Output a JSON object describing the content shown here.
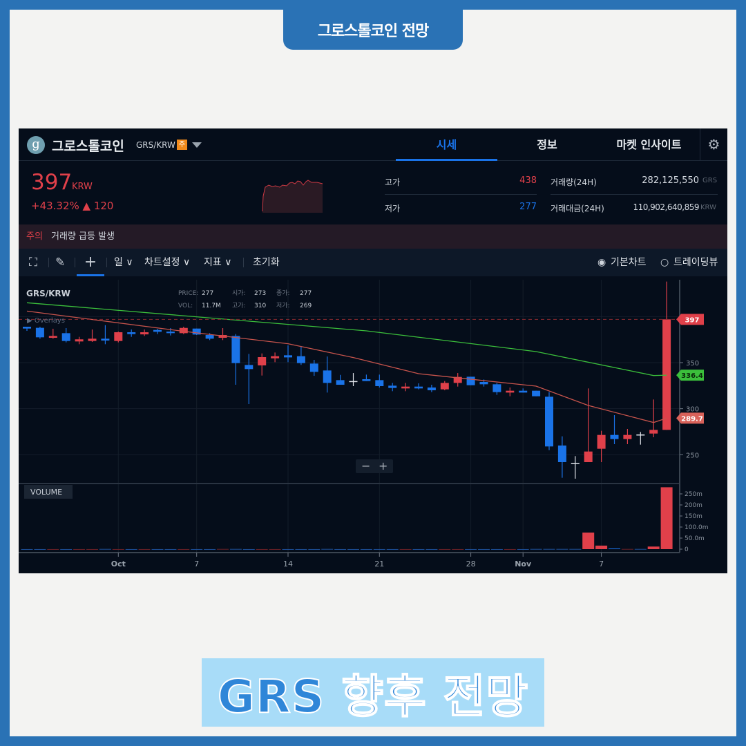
{
  "header_tab": "그로스톨코인 전망",
  "banner": "GRS 향후 전망",
  "app": {
    "logo_letter": "g",
    "coin_name": "그로스톨코인",
    "pair": "GRS/KRW",
    "badge": "주",
    "tabs": [
      {
        "label": "시세",
        "active": true
      },
      {
        "label": "정보"
      },
      {
        "label": "마켓 인사이트"
      }
    ],
    "settings_icon": "gear-icon",
    "price": "397",
    "price_unit": "KRW",
    "change": "+43.32% ▲ 120",
    "stats": {
      "high_label": "고가",
      "high": "438",
      "low_label": "저가",
      "low": "277",
      "volume_label": "거래량(24H)",
      "volume": "282,125,550",
      "volume_unit": "GRS",
      "amount_label": "거래대금(24H)",
      "amount": "110,902,640,859",
      "amount_unit": "KRW"
    },
    "warning": {
      "tag": "주의",
      "message": "거래량 급등 발생"
    },
    "toolbar": {
      "interval": "일 ∨",
      "chart_settings": "차트설정 ∨",
      "indicators": "지표 ∨",
      "reset": "초기화",
      "view_basic": "기본차트",
      "view_tradingview": "트레이딩뷰"
    },
    "colors": {
      "up": "#e0404a",
      "down": "#1a73e8",
      "accent": "#1a73e8",
      "ma_short": "#c8544c",
      "ma_long": "#3bbf3b",
      "background": "#050d1a"
    }
  },
  "chart_data": {
    "type": "candlestick",
    "title": "GRS/KRW",
    "overlays_label": "▶ Overlays",
    "volume_label": "VOLUME",
    "tooltip": {
      "price_label": "PRICE:",
      "price": "277",
      "open_label": "시가:",
      "open": "273",
      "close_label": "종가:",
      "close": "277",
      "vol_label": "VOL:",
      "vol": "11.7M",
      "high_label": "고가:",
      "high": "310",
      "low_label": "저가:",
      "low": "269"
    },
    "x": [
      "Sep 24",
      "Sep 25",
      "Sep 26",
      "Sep 27",
      "Sep 28",
      "Sep 29",
      "Sep 30",
      "Oct 1",
      "Oct 2",
      "Oct 3",
      "Oct 4",
      "Oct 5",
      "Oct 6",
      "Oct 7",
      "Oct 8",
      "Oct 9",
      "Oct 10",
      "Oct 11",
      "Oct 12",
      "Oct 13",
      "Oct 14",
      "Oct 15",
      "Oct 16",
      "Oct 17",
      "Oct 18",
      "Oct 19",
      "Oct 20",
      "Oct 21",
      "Oct 22",
      "Oct 23",
      "Oct 24",
      "Oct 25",
      "Oct 26",
      "Oct 27",
      "Oct 28",
      "Oct 29",
      "Oct 30",
      "Oct 31",
      "Nov 1",
      "Nov 2",
      "Nov 3",
      "Nov 4",
      "Nov 5",
      "Nov 6",
      "Nov 7",
      "Nov 8",
      "Nov 9",
      "Nov 10",
      "Nov 11",
      "Nov 12"
    ],
    "ohlc": [
      [
        389,
        389,
        384.5,
        387
      ],
      [
        387.8,
        389,
        376,
        377.5
      ],
      [
        377,
        386.8,
        376,
        379
      ],
      [
        382,
        387.5,
        372,
        373.5
      ],
      [
        373,
        378,
        370,
        375.3
      ],
      [
        373.5,
        386,
        372.5,
        376
      ],
      [
        376,
        390.7,
        370,
        374
      ],
      [
        373.5,
        383.7,
        372,
        383
      ],
      [
        383,
        386,
        378,
        381
      ],
      [
        380.7,
        386,
        379,
        383
      ],
      [
        385.5,
        386.7,
        381,
        383.5
      ],
      [
        383.7,
        387.5,
        379.5,
        382
      ],
      [
        382,
        389,
        381,
        387.7
      ],
      [
        387,
        387,
        380,
        380.5
      ],
      [
        380,
        382,
        374.5,
        376
      ],
      [
        377,
        387.5,
        374.5,
        380
      ],
      [
        379,
        381,
        326,
        349.5
      ],
      [
        347.5,
        359.5,
        305,
        343
      ],
      [
        347,
        360,
        336,
        356
      ],
      [
        354.7,
        361,
        350.5,
        357
      ],
      [
        358,
        368.7,
        350.5,
        355.7
      ],
      [
        357,
        368,
        347.5,
        349.5
      ],
      [
        349,
        353,
        335.7,
        340
      ],
      [
        341.5,
        356.7,
        317.5,
        328
      ],
      [
        331,
        336.7,
        326,
        326
      ],
      [
        330,
        338.7,
        324.5,
        330
      ],
      [
        332,
        337,
        330,
        330
      ],
      [
        331,
        337,
        323,
        324.5
      ],
      [
        325,
        328,
        319,
        322.5
      ],
      [
        322,
        328,
        319,
        324
      ],
      [
        324,
        327.5,
        321,
        322
      ],
      [
        323,
        326,
        318,
        320
      ],
      [
        321,
        330,
        320,
        328
      ],
      [
        328,
        338.7,
        324,
        334.5
      ],
      [
        334.7,
        334.7,
        325.5,
        325.5
      ],
      [
        329,
        331.7,
        324,
        326.5
      ],
      [
        326.5,
        328,
        315,
        318
      ],
      [
        317.5,
        323,
        313.5,
        319.5
      ],
      [
        319.5,
        322,
        317.5,
        317.5
      ],
      [
        319.5,
        319.5,
        313.5,
        313.5
      ],
      [
        313,
        318,
        255,
        259
      ],
      [
        260,
        270,
        225,
        242
      ],
      [
        241,
        248.5,
        224,
        241
      ],
      [
        242,
        322,
        242,
        253.5
      ],
      [
        256.5,
        276,
        242,
        271.5
      ],
      [
        271.5,
        293,
        261.5,
        267
      ],
      [
        267,
        278,
        261.5,
        271.5
      ],
      [
        272,
        274.7,
        261,
        272
      ],
      [
        273,
        310,
        269,
        277
      ],
      [
        277,
        438,
        277,
        397
      ]
    ],
    "volume_m": [
      0.2,
      0.2,
      0.2,
      0.2,
      0.2,
      0.2,
      1,
      0.2,
      0.2,
      0.2,
      0.2,
      0.2,
      0.2,
      0.2,
      0.2,
      1,
      1,
      0.2,
      0.2,
      0.2,
      0.2,
      0.2,
      0.2,
      1,
      0.2,
      0.2,
      0.2,
      0.2,
      0.2,
      0.2,
      0.2,
      0.2,
      0.2,
      0.2,
      0.2,
      0.2,
      0.2,
      0.2,
      0.2,
      1,
      1,
      1,
      1,
      75,
      16,
      3,
      1,
      1,
      11.7,
      280
    ],
    "ma_short": [
      [
        "Sep 24",
        406
      ],
      [
        "Oct 6",
        384
      ],
      [
        "Oct 14",
        370.5
      ],
      [
        "Oct 19",
        355.5
      ],
      [
        "Oct 24",
        338
      ],
      [
        "Nov 2",
        324.5
      ],
      [
        "Nov 6",
        303.5
      ],
      [
        "Nov 11",
        285
      ],
      [
        "Nov 12",
        289.7
      ]
    ],
    "ma_long": [
      [
        "Sep 24",
        415
      ],
      [
        "Oct 20",
        384.5
      ],
      [
        "Nov 2",
        362
      ],
      [
        "Nov 11",
        336
      ],
      [
        "Nov 12",
        336.4
      ]
    ],
    "price_ticks": [
      250,
      300,
      350
    ],
    "volume_ticks": [
      {
        "v": 0,
        "label": "0"
      },
      {
        "v": 50,
        "label": "50.0m"
      },
      {
        "v": 100,
        "label": "100.0m"
      },
      {
        "v": 150,
        "label": "150m"
      },
      {
        "v": 200,
        "label": "200m"
      },
      {
        "v": 250,
        "label": "250m"
      }
    ],
    "date_ticks": [
      {
        "date": "Oct 1",
        "label": "Oct"
      },
      {
        "date": "Oct 7",
        "label": "7"
      },
      {
        "date": "Oct 14",
        "label": "14"
      },
      {
        "date": "Oct 21",
        "label": "21"
      },
      {
        "date": "Oct 28",
        "label": "28"
      },
      {
        "date": "Nov 1",
        "label": "Nov"
      },
      {
        "date": "Nov 7",
        "label": "7"
      }
    ],
    "price_labels": [
      {
        "value": 397,
        "label": "397",
        "color": "#e0404a"
      },
      {
        "value": 336.4,
        "label": "336.4",
        "color": "#3bbf3b"
      },
      {
        "value": 289.7,
        "label": "289.7",
        "color": "#d9625a"
      }
    ],
    "current_price_line": 397,
    "grid": true,
    "y_range": [
      220,
      440
    ]
  }
}
